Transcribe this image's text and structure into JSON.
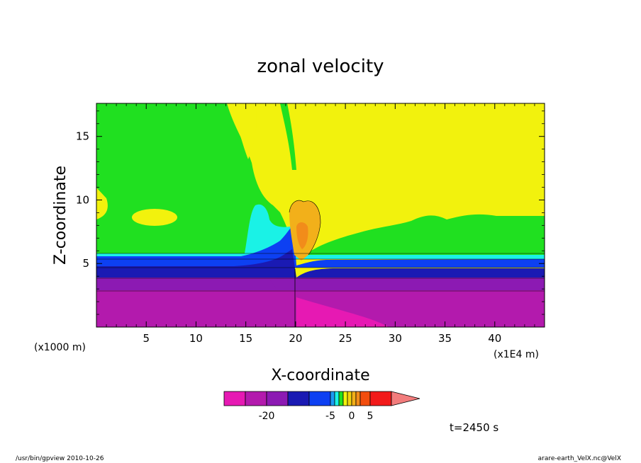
{
  "chart_data": {
    "type": "heatmap",
    "title": "zonal velocity",
    "xlabel": "X-coordinate",
    "ylabel": "Z-coordinate",
    "x_unit": "(x1000 m)",
    "x_unit_right": "(x1E4 m)",
    "x_ticks": [
      "5",
      "10",
      "15",
      "20",
      "25",
      "30",
      "35",
      "40"
    ],
    "y_ticks": [
      "5",
      "10",
      "15"
    ],
    "xlim": [
      0,
      45
    ],
    "ylim": [
      0,
      17.6
    ],
    "colorbar": {
      "levels": [
        -30,
        -25,
        -20,
        -15,
        -10,
        -5,
        -4,
        -3,
        -2,
        -1,
        0,
        1,
        2,
        5,
        10,
        15
      ],
      "colors": [
        "#e619b3",
        "#b31aad",
        "#8c1ab3",
        "#1a1ab3",
        "#0d40f2",
        "#1a99f2",
        "#1af2e6",
        "#20e020",
        "#f2f20d",
        "#f2d40d",
        "#f2b01a",
        "#f28c1a",
        "#f24d0d",
        "#f21a1a",
        "#f27c7c"
      ],
      "tick_labels": [
        "-20",
        "-5",
        "0",
        "5"
      ]
    },
    "regions": [
      {
        "value_range": [
          -30,
          -25
        ],
        "color": "#e619b3",
        "description": "z < 3.1 km, strongest near x 20-28"
      },
      {
        "value_range": [
          -25,
          -20
        ],
        "color": "#b31aad",
        "description": "z 0-3.1 km"
      },
      {
        "value_range": [
          -20,
          -15
        ],
        "color": "#8c1ab3",
        "description": "z 3.1-4.1 km"
      },
      {
        "value_range": [
          -15,
          -10
        ],
        "color": "#1a1ab3",
        "description": "z 4.1-5.1 km"
      },
      {
        "value_range": [
          -10,
          -5
        ],
        "color": "#0d40f2",
        "description": "z 5.1-5.7 km"
      },
      {
        "value_range": [
          -5,
          -1
        ],
        "color": "#1af2e6",
        "description": "z 5.7-6.0 km"
      },
      {
        "value_range": [
          -1,
          0
        ],
        "color": "#20e020",
        "description": "upper layer, west half"
      },
      {
        "value_range": [
          0,
          1
        ],
        "color": "#f2f20d",
        "description": "upper layer, east half"
      },
      {
        "value_range": [
          2,
          10
        ],
        "color": "#f2b01a",
        "description": "jet near x 20-22, z 6-10"
      }
    ],
    "grid": false
  },
  "annotations": {
    "time": "t=2450 s",
    "footer_left": "/usr/bin/gpview   2010-10-26",
    "footer_right": "arare-earth_VelX.nc@VelX"
  },
  "colors": {
    "magenta": "#e619b3",
    "purple": "#8c1ab3",
    "navy": "#1a1ab3",
    "blue": "#0d40f2",
    "cyan": "#1af2e6",
    "green": "#20e020",
    "yellow": "#f2f20d",
    "orange": "#f2b01a",
    "red": "#f21a1a"
  }
}
